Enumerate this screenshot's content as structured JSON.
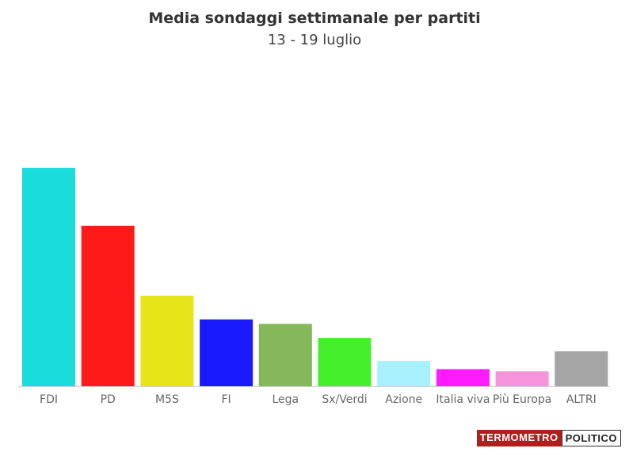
{
  "chart_data": {
    "type": "bar",
    "title": "Media sondaggi settimanale per partiti",
    "subtitle": "13 - 19 luglio",
    "categories": [
      "FDI",
      "PD",
      "M5S",
      "FI",
      "Lega",
      "Sx/Verdi",
      "Azione",
      "Italia viva",
      "Più Europa",
      "ALTRI"
    ],
    "values": [
      29.4,
      21.6,
      12.2,
      9.0,
      8.4,
      6.5,
      3.4,
      2.3,
      2.0,
      4.7
    ],
    "colors": [
      "#1adcdc",
      "#ff1a1a",
      "#e5e51a",
      "#1a1aff",
      "#84b85a",
      "#44ee2a",
      "#a8f0fc",
      "#ff1aff",
      "#f593dc",
      "#a5a5a5"
    ],
    "ylim": [
      0,
      36
    ],
    "grid": false,
    "legend": "none"
  },
  "brand": {
    "part1": "TERMOMETRO",
    "part2": "POLITICO"
  }
}
